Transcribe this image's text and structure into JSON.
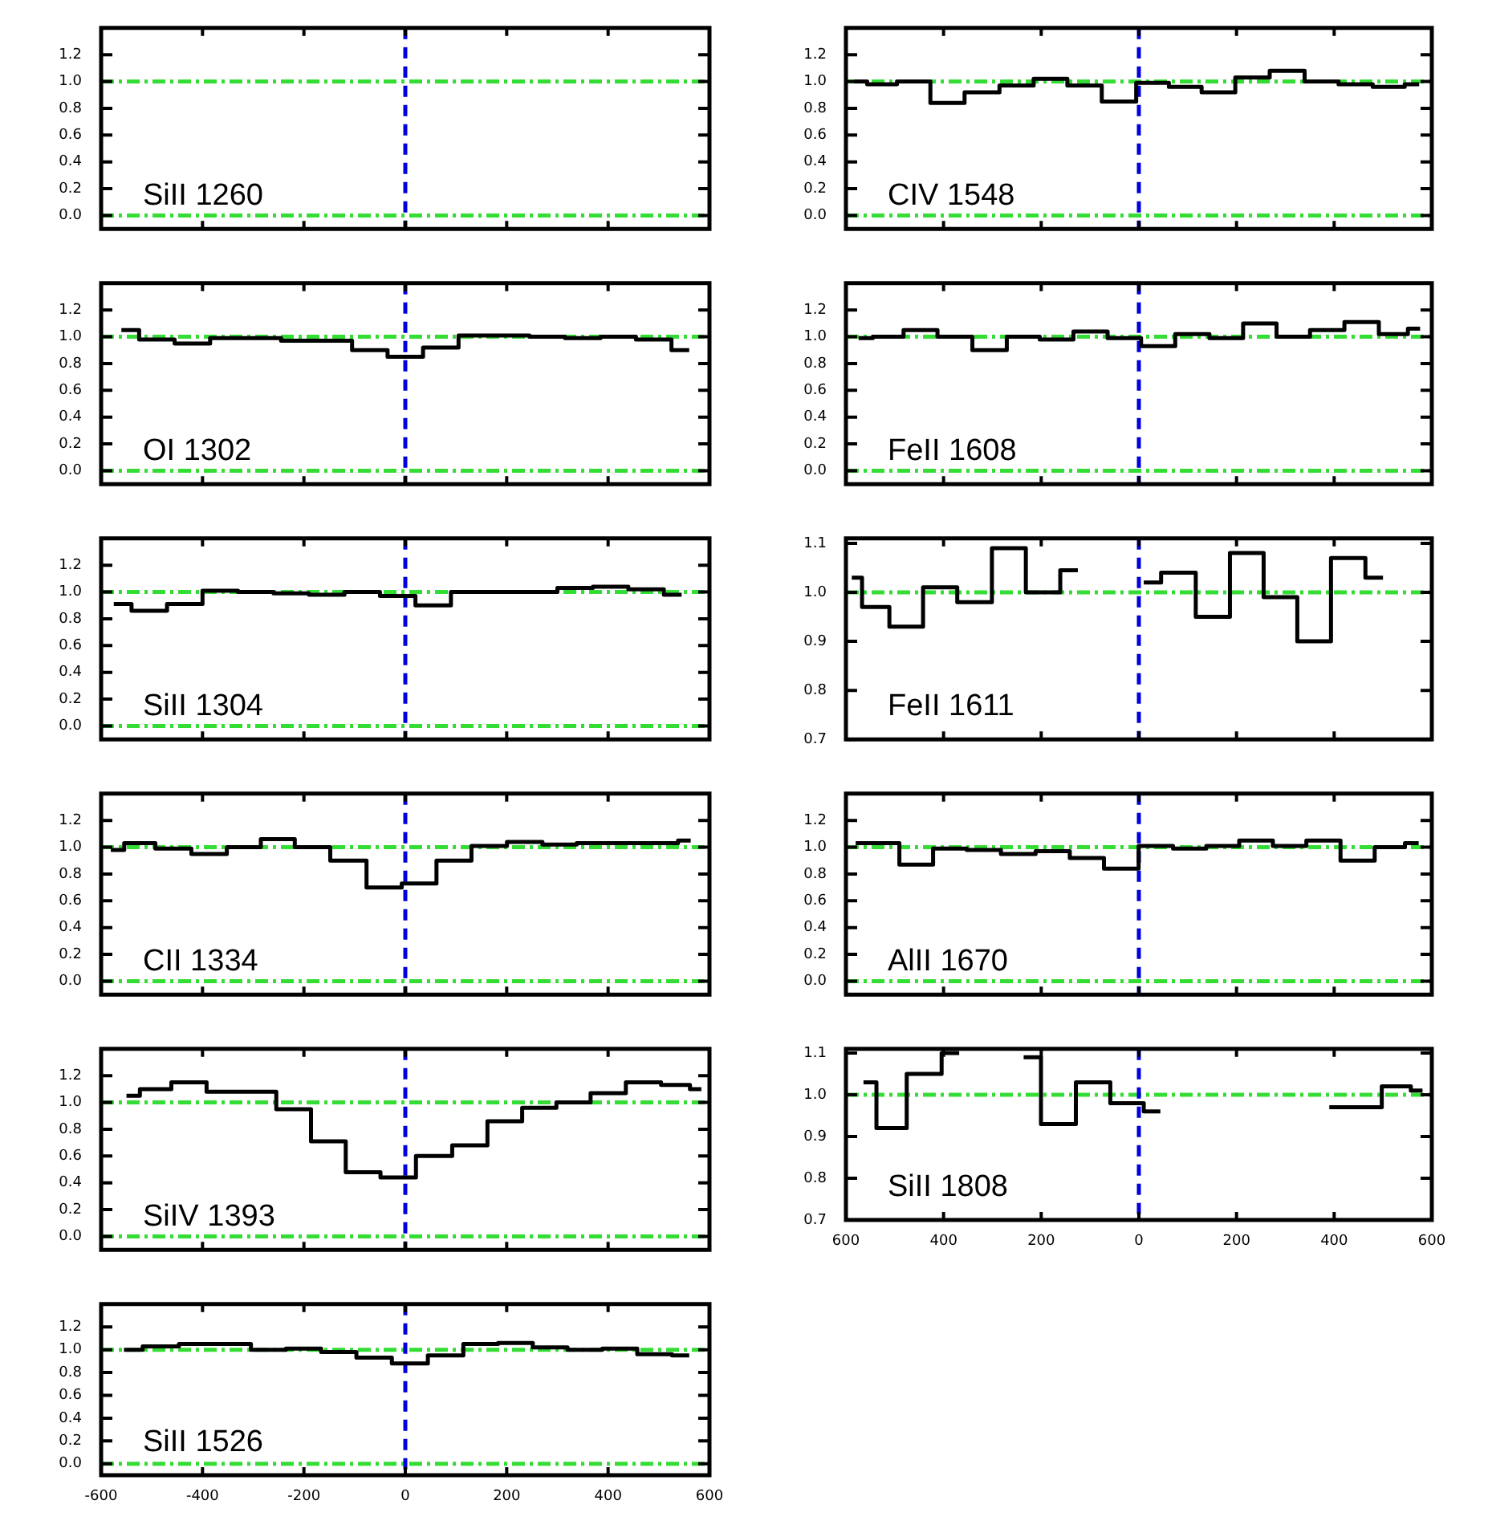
{
  "chart_data": [
    {
      "type": "step",
      "annotations": [
        "SiII 1260"
      ],
      "xlim": [
        -600,
        600
      ],
      "xticks": [
        -600,
        -400,
        -200,
        0,
        200,
        400,
        600
      ],
      "ylim": [
        -0.1,
        1.4
      ],
      "yticks": [
        {
          "value": 0,
          "label": "0.0"
        },
        {
          "value": 0.2,
          "label": "0.2"
        },
        {
          "value": 0.4,
          "label": "0.4"
        },
        {
          "value": 0.6,
          "label": "0.6"
        },
        {
          "value": 0.8,
          "label": "0.8"
        },
        {
          "value": 1,
          "label": "1.0"
        },
        {
          "value": 1.2,
          "label": "1.2"
        }
      ],
      "tick_labels": "y",
      "ref_lines": [
        {
          "axis": "y",
          "value": 0,
          "color": "#33dd33",
          "line_style": "dashdot"
        },
        {
          "axis": "y",
          "value": 1,
          "color": "#33dd33",
          "line_style": "dashdot"
        },
        {
          "axis": "x",
          "value": 0,
          "color": "#0000dd",
          "line_style": "dashed"
        }
      ]
    },
    {
      "type": "step",
      "annotations": [
        "OI 1302"
      ],
      "x": [
        -560,
        -490,
        -420,
        -350,
        -280,
        -210,
        -140,
        -70,
        0,
        70,
        140,
        210,
        280,
        350,
        420,
        490,
        560
      ],
      "series": [
        {
          "color": "#000000",
          "values": [
            1.05,
            0.98,
            0.95,
            0.99,
            0.99,
            0.97,
            0.97,
            0.9,
            0.85,
            0.92,
            1.01,
            1.01,
            1.0,
            0.99,
            1.0,
            0.98,
            0.9
          ]
        }
      ],
      "xlim": [
        -600,
        600
      ],
      "xticks": [
        -600,
        -400,
        -200,
        0,
        200,
        400,
        600
      ],
      "ylim": [
        -0.1,
        1.4
      ],
      "yticks": [
        {
          "value": 0,
          "label": "0.0"
        },
        {
          "value": 0.2,
          "label": "0.2"
        },
        {
          "value": 0.4,
          "label": "0.4"
        },
        {
          "value": 0.6,
          "label": "0.6"
        },
        {
          "value": 0.8,
          "label": "0.8"
        },
        {
          "value": 1,
          "label": "1.0"
        },
        {
          "value": 1.2,
          "label": "1.2"
        }
      ],
      "tick_labels": "y",
      "ref_lines": [
        {
          "axis": "y",
          "value": 0,
          "color": "#33dd33",
          "line_style": "dashdot"
        },
        {
          "axis": "y",
          "value": 1,
          "color": "#33dd33",
          "line_style": "dashdot"
        },
        {
          "axis": "x",
          "value": 0,
          "color": "#0000dd",
          "line_style": "dashed"
        }
      ]
    },
    {
      "type": "step",
      "annotations": [
        "SiII 1304"
      ],
      "x": [
        -575,
        -505,
        -435,
        -365,
        -295,
        -225,
        -155,
        -85,
        -15,
        55,
        125,
        195,
        265,
        335,
        405,
        475,
        545
      ],
      "series": [
        {
          "color": "#000000",
          "values": [
            0.91,
            0.86,
            0.91,
            1.01,
            1.0,
            0.99,
            0.98,
            1.0,
            0.97,
            0.9,
            1.0,
            1.0,
            1.0,
            1.03,
            1.04,
            1.02,
            0.98
          ]
        }
      ],
      "xlim": [
        -600,
        600
      ],
      "xticks": [
        -600,
        -400,
        -200,
        0,
        200,
        400,
        600
      ],
      "ylim": [
        -0.1,
        1.4
      ],
      "yticks": [
        {
          "value": 0,
          "label": "0.0"
        },
        {
          "value": 0.2,
          "label": "0.2"
        },
        {
          "value": 0.4,
          "label": "0.4"
        },
        {
          "value": 0.6,
          "label": "0.6"
        },
        {
          "value": 0.8,
          "label": "0.8"
        },
        {
          "value": 1,
          "label": "1.0"
        },
        {
          "value": 1.2,
          "label": "1.2"
        }
      ],
      "tick_labels": "y",
      "ref_lines": [
        {
          "axis": "y",
          "value": 0,
          "color": "#33dd33",
          "line_style": "dashdot"
        },
        {
          "axis": "y",
          "value": 1,
          "color": "#33dd33",
          "line_style": "dashdot"
        },
        {
          "axis": "x",
          "value": 0,
          "color": "#0000dd",
          "line_style": "dashed"
        }
      ]
    },
    {
      "type": "step",
      "annotations": [
        "CII 1334"
      ],
      "x": [
        -581,
        -528,
        -458,
        -386,
        -318,
        -252,
        -184,
        -112,
        -41,
        27,
        96,
        165,
        236,
        305,
        371,
        442,
        513,
        563
      ],
      "series": [
        {
          "color": "#000000",
          "values": [
            0.98,
            1.03,
            0.99,
            0.95,
            1.0,
            1.06,
            1.0,
            0.9,
            0.7,
            0.73,
            0.9,
            1.01,
            1.04,
            1.02,
            1.03,
            1.03,
            1.03,
            1.05
          ]
        }
      ],
      "xlim": [
        -600,
        600
      ],
      "xticks": [
        -600,
        -400,
        -200,
        0,
        200,
        400,
        600
      ],
      "ylim": [
        -0.1,
        1.4
      ],
      "yticks": [
        {
          "value": 0,
          "label": "0.0"
        },
        {
          "value": 0.2,
          "label": "0.2"
        },
        {
          "value": 0.4,
          "label": "0.4"
        },
        {
          "value": 0.6,
          "label": "0.6"
        },
        {
          "value": 0.8,
          "label": "0.8"
        },
        {
          "value": 1,
          "label": "1.0"
        },
        {
          "value": 1.2,
          "label": "1.2"
        }
      ],
      "tick_labels": "y",
      "ref_lines": [
        {
          "axis": "y",
          "value": 0,
          "color": "#33dd33",
          "line_style": "dashdot"
        },
        {
          "axis": "y",
          "value": 1,
          "color": "#33dd33",
          "line_style": "dashdot"
        },
        {
          "axis": "x",
          "value": 0,
          "color": "#0000dd",
          "line_style": "dashed"
        }
      ]
    },
    {
      "type": "step",
      "annotations": [
        "SiIV 1393"
      ],
      "x": [
        -550,
        -497,
        -426,
        -358,
        -289,
        -220,
        -152,
        -83,
        -15,
        57,
        128,
        196,
        265,
        331,
        400,
        470,
        539,
        584
      ],
      "series": [
        {
          "color": "#000000",
          "values": [
            1.05,
            1.1,
            1.15,
            1.08,
            1.08,
            0.95,
            0.71,
            0.48,
            0.44,
            0.6,
            0.68,
            0.86,
            0.96,
            1.0,
            1.07,
            1.15,
            1.13,
            1.1
          ]
        }
      ],
      "xlim": [
        -600,
        600
      ],
      "xticks": [
        -600,
        -400,
        -200,
        0,
        200,
        400,
        600
      ],
      "ylim": [
        -0.1,
        1.4
      ],
      "yticks": [
        {
          "value": 0,
          "label": "0.0"
        },
        {
          "value": 0.2,
          "label": "0.2"
        },
        {
          "value": 0.4,
          "label": "0.4"
        },
        {
          "value": 0.6,
          "label": "0.6"
        },
        {
          "value": 0.8,
          "label": "0.8"
        },
        {
          "value": 1,
          "label": "1.0"
        },
        {
          "value": 1.2,
          "label": "1.2"
        }
      ],
      "tick_labels": "y",
      "ref_lines": [
        {
          "axis": "y",
          "value": 0,
          "color": "#33dd33",
          "line_style": "dashdot"
        },
        {
          "axis": "y",
          "value": 1,
          "color": "#33dd33",
          "line_style": "dashdot"
        },
        {
          "axis": "x",
          "value": 0,
          "color": "#0000dd",
          "line_style": "dashed"
        }
      ]
    },
    {
      "type": "step",
      "annotations": [
        "SiII 1526"
      ],
      "x": [
        -555,
        -481,
        -412,
        -339,
        -270,
        -201,
        -131,
        -62,
        9,
        80,
        149,
        217,
        286,
        354,
        423,
        492,
        560
      ],
      "series": [
        {
          "color": "#000000",
          "values": [
            1.0,
            1.03,
            1.05,
            1.05,
            1.0,
            1.01,
            0.98,
            0.93,
            0.88,
            0.95,
            1.05,
            1.06,
            1.02,
            1.0,
            1.01,
            0.96,
            0.95
          ]
        }
      ],
      "xlim": [
        -600,
        600
      ],
      "xticks": [
        -600,
        -400,
        -200,
        0,
        200,
        400,
        600
      ],
      "ylim": [
        -0.1,
        1.4
      ],
      "yticks": [
        {
          "value": 0,
          "label": "0.0"
        },
        {
          "value": 0.2,
          "label": "0.2"
        },
        {
          "value": 0.4,
          "label": "0.4"
        },
        {
          "value": 0.6,
          "label": "0.6"
        },
        {
          "value": 0.8,
          "label": "0.8"
        },
        {
          "value": 1,
          "label": "1.0"
        },
        {
          "value": 1.2,
          "label": "1.2"
        }
      ],
      "ref_lines": [
        {
          "axis": "y",
          "value": 0,
          "color": "#33dd33",
          "line_style": "dashdot"
        },
        {
          "axis": "y",
          "value": 1,
          "color": "#33dd33",
          "line_style": "dashdot"
        },
        {
          "axis": "x",
          "value": 0,
          "color": "#0000dd",
          "line_style": "dashed"
        }
      ]
    },
    {
      "type": "step",
      "annotations": [
        "CIV 1548"
      ],
      "x": [
        -583,
        -530,
        -461,
        -393,
        -321,
        -250,
        -181,
        -112,
        -40,
        29,
        94,
        163,
        232,
        304,
        375,
        443,
        515,
        574
      ],
      "series": [
        {
          "color": "#000000",
          "values": [
            1.0,
            0.98,
            1.0,
            0.84,
            0.92,
            0.97,
            1.02,
            0.97,
            0.85,
            0.99,
            0.96,
            0.92,
            1.03,
            1.08,
            1.0,
            0.98,
            0.96,
            0.98
          ]
        }
      ],
      "xlim": [
        -600,
        600
      ],
      "xticks": [
        -600,
        -400,
        -200,
        0,
        200,
        400,
        600
      ],
      "ylim": [
        -0.1,
        1.4
      ],
      "yticks": [
        {
          "value": 0,
          "label": "0.0"
        },
        {
          "value": 0.2,
          "label": "0.2"
        },
        {
          "value": 0.4,
          "label": "0.4"
        },
        {
          "value": 0.6,
          "label": "0.6"
        },
        {
          "value": 0.8,
          "label": "0.8"
        },
        {
          "value": 1,
          "label": "1.0"
        },
        {
          "value": 1.2,
          "label": "1.2"
        }
      ],
      "tick_labels": "y",
      "ref_lines": [
        {
          "axis": "y",
          "value": 0,
          "color": "#33dd33",
          "line_style": "dashdot"
        },
        {
          "axis": "y",
          "value": 1,
          "color": "#33dd33",
          "line_style": "dashdot"
        },
        {
          "axis": "x",
          "value": 0,
          "color": "#0000dd",
          "line_style": "dashed"
        }
      ]
    },
    {
      "type": "step",
      "annotations": [
        "FeII 1608"
      ],
      "x": [
        -574,
        -516,
        -448,
        -377,
        -305,
        -236,
        -170,
        -98,
        -30,
        39,
        110,
        179,
        248,
        316,
        385,
        457,
        526,
        576
      ],
      "series": [
        {
          "color": "#000000",
          "values": [
            0.99,
            1.0,
            1.05,
            1.0,
            0.9,
            1.0,
            0.98,
            1.04,
            0.99,
            0.93,
            1.02,
            0.99,
            1.1,
            1.0,
            1.05,
            1.11,
            1.02,
            1.06
          ]
        }
      ],
      "xlim": [
        -600,
        600
      ],
      "xticks": [
        -600,
        -400,
        -200,
        0,
        200,
        400,
        600
      ],
      "ylim": [
        -0.1,
        1.4
      ],
      "yticks": [
        {
          "value": 0,
          "label": "0.0"
        },
        {
          "value": 0.2,
          "label": "0.2"
        },
        {
          "value": 0.4,
          "label": "0.4"
        },
        {
          "value": 0.6,
          "label": "0.6"
        },
        {
          "value": 0.8,
          "label": "0.8"
        },
        {
          "value": 1,
          "label": "1.0"
        },
        {
          "value": 1.2,
          "label": "1.2"
        }
      ],
      "tick_labels": "y",
      "ref_lines": [
        {
          "axis": "y",
          "value": 0,
          "color": "#33dd33",
          "line_style": "dashdot"
        },
        {
          "axis": "y",
          "value": 1,
          "color": "#33dd33",
          "line_style": "dashdot"
        },
        {
          "axis": "x",
          "value": 0,
          "color": "#0000dd",
          "line_style": "dashed"
        }
      ]
    },
    {
      "type": "step",
      "annotations": [
        "FeII 1611"
      ],
      "x": [
        -588,
        -546,
        -476,
        -408,
        -336,
        -266,
        -197,
        -125,
        -56,
        10,
        81,
        152,
        221,
        290,
        359,
        428,
        500
      ],
      "series": [
        {
          "color": "#000000",
          "values": [
            1.03,
            0.97,
            0.93,
            1.01,
            0.98,
            1.09,
            1.0,
            1.045,
            null,
            1.02,
            1.04,
            0.95,
            1.08,
            0.99,
            0.9,
            1.07,
            1.03
          ]
        }
      ],
      "xlim": [
        -600,
        600
      ],
      "xticks": [
        -600,
        -400,
        -200,
        0,
        200,
        400,
        600
      ],
      "ylim": [
        0.7,
        1.11
      ],
      "yticks": [
        {
          "value": 0.7,
          "label": "0.7"
        },
        {
          "value": 0.8,
          "label": "0.8"
        },
        {
          "value": 0.9,
          "label": "0.9"
        },
        {
          "value": 1,
          "label": "1.0"
        },
        {
          "value": 1.1,
          "label": "1.1"
        }
      ],
      "tick_labels": "y",
      "ref_lines": [
        {
          "axis": "y",
          "value": 1,
          "color": "#33dd33",
          "line_style": "dashdot"
        },
        {
          "axis": "x",
          "value": 0,
          "color": "#0000dd",
          "line_style": "dashed"
        }
      ]
    },
    {
      "type": "step",
      "annotations": [
        "AlII 1670"
      ],
      "x": [
        -580,
        -525,
        -456,
        -387,
        -318,
        -247,
        -176,
        -107,
        -36,
        35,
        105,
        171,
        240,
        309,
        377,
        449,
        517,
        573
      ],
      "series": [
        {
          "color": "#000000",
          "values": [
            1.03,
            1.03,
            0.87,
            0.99,
            0.98,
            0.95,
            0.97,
            0.92,
            0.84,
            1.01,
            0.99,
            1.01,
            1.05,
            1.01,
            1.05,
            0.9,
            1.0,
            1.03
          ]
        }
      ],
      "xlim": [
        -600,
        600
      ],
      "xticks": [
        -600,
        -400,
        -200,
        0,
        200,
        400,
        600
      ],
      "ylim": [
        -0.1,
        1.4
      ],
      "yticks": [
        {
          "value": 0,
          "label": "0.0"
        },
        {
          "value": 0.2,
          "label": "0.2"
        },
        {
          "value": 0.4,
          "label": "0.4"
        },
        {
          "value": 0.6,
          "label": "0.6"
        },
        {
          "value": 0.8,
          "label": "0.8"
        },
        {
          "value": 1,
          "label": "1.0"
        },
        {
          "value": 1.2,
          "label": "1.2"
        }
      ],
      "tick_labels": "y",
      "ref_lines": [
        {
          "axis": "y",
          "value": 0,
          "color": "#33dd33",
          "line_style": "dashdot"
        },
        {
          "axis": "y",
          "value": 1,
          "color": "#33dd33",
          "line_style": "dashdot"
        },
        {
          "axis": "x",
          "value": 0,
          "color": "#0000dd",
          "line_style": "dashed"
        }
      ]
    },
    {
      "type": "step",
      "annotations": [
        "SiII 1808"
      ],
      "x": [
        -564,
        -511,
        -440,
        -368,
        -303,
        -236,
        -165,
        -93,
        -24,
        44,
        115,
        184,
        253,
        322,
        390,
        462,
        533,
        581
      ],
      "series": [
        {
          "color": "#000000",
          "values": [
            1.03,
            0.92,
            1.05,
            1.1,
            null,
            1.09,
            0.93,
            1.03,
            0.98,
            0.96,
            null,
            null,
            null,
            null,
            0.97,
            0.97,
            1.02,
            1.01
          ]
        }
      ],
      "xlim": [
        -600,
        600
      ],
      "xticks": [
        {
          "value": -600,
          "label": "600"
        },
        {
          "value": -400,
          "label": "400"
        },
        {
          "value": -200,
          "label": "200"
        },
        {
          "value": 0,
          "label": "0"
        },
        {
          "value": 200,
          "label": "200"
        },
        {
          "value": 400,
          "label": "400"
        },
        {
          "value": 600,
          "label": "600"
        }
      ],
      "ylim": [
        0.7,
        1.11
      ],
      "yticks": [
        {
          "value": 0.7,
          "label": "0.7"
        },
        {
          "value": 0.8,
          "label": "0.8"
        },
        {
          "value": 0.9,
          "label": "0.9"
        },
        {
          "value": 1,
          "label": "1.0"
        },
        {
          "value": 1.1,
          "label": "1.1"
        }
      ],
      "ref_lines": [
        {
          "axis": "y",
          "value": 1,
          "color": "#33dd33",
          "line_style": "dashdot"
        },
        {
          "axis": "x",
          "value": 0,
          "color": "#0000dd",
          "line_style": "dashed"
        }
      ]
    }
  ]
}
